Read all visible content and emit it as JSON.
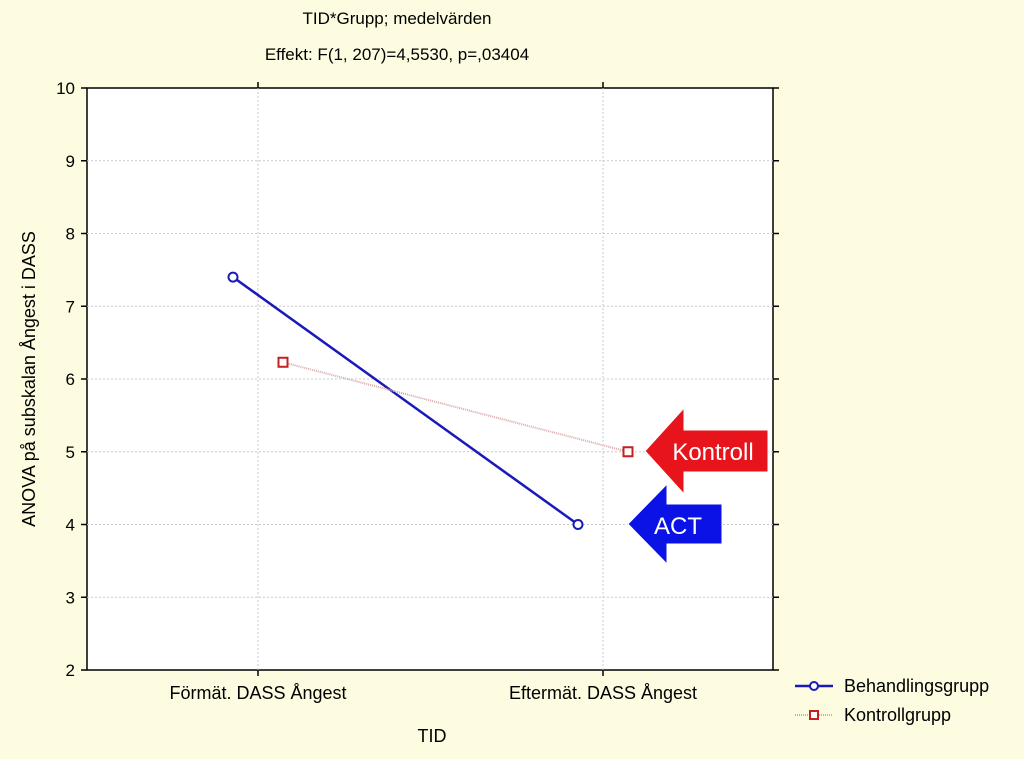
{
  "chart_data": {
    "type": "line",
    "title": "TID*Grupp; medelvärden",
    "subtitle": "Effekt: F(1, 207)=4,5530, p=,03404",
    "xlabel": "TID",
    "ylabel": "ANOVA på subskalan Ångest i DASS",
    "categories": [
      "Förmät. DASS Ångest",
      "Eftermät. DASS Ångest"
    ],
    "ylim": [
      2,
      10
    ],
    "yticks": [
      "2",
      "3",
      "4",
      "5",
      "6",
      "7",
      "8",
      "9",
      "10"
    ],
    "grid": true,
    "legend_position": "bottom-right",
    "series": [
      {
        "name": "Behandlingsgrupp",
        "values": [
          7.4,
          4.0
        ],
        "color": "#1a1aba",
        "marker": "circle"
      },
      {
        "name": "Kontrollgrupp",
        "values": [
          6.23,
          5.0
        ],
        "color": "#c42020",
        "line_color": "#d8a8a8",
        "marker": "square"
      }
    ],
    "annotations": [
      {
        "text": "Kontroll",
        "color": "#e8141c",
        "points_to": "Kontrollgrupp"
      },
      {
        "text": "ACT",
        "color": "#0a12e6",
        "points_to": "Behandlingsgrupp"
      }
    ]
  }
}
